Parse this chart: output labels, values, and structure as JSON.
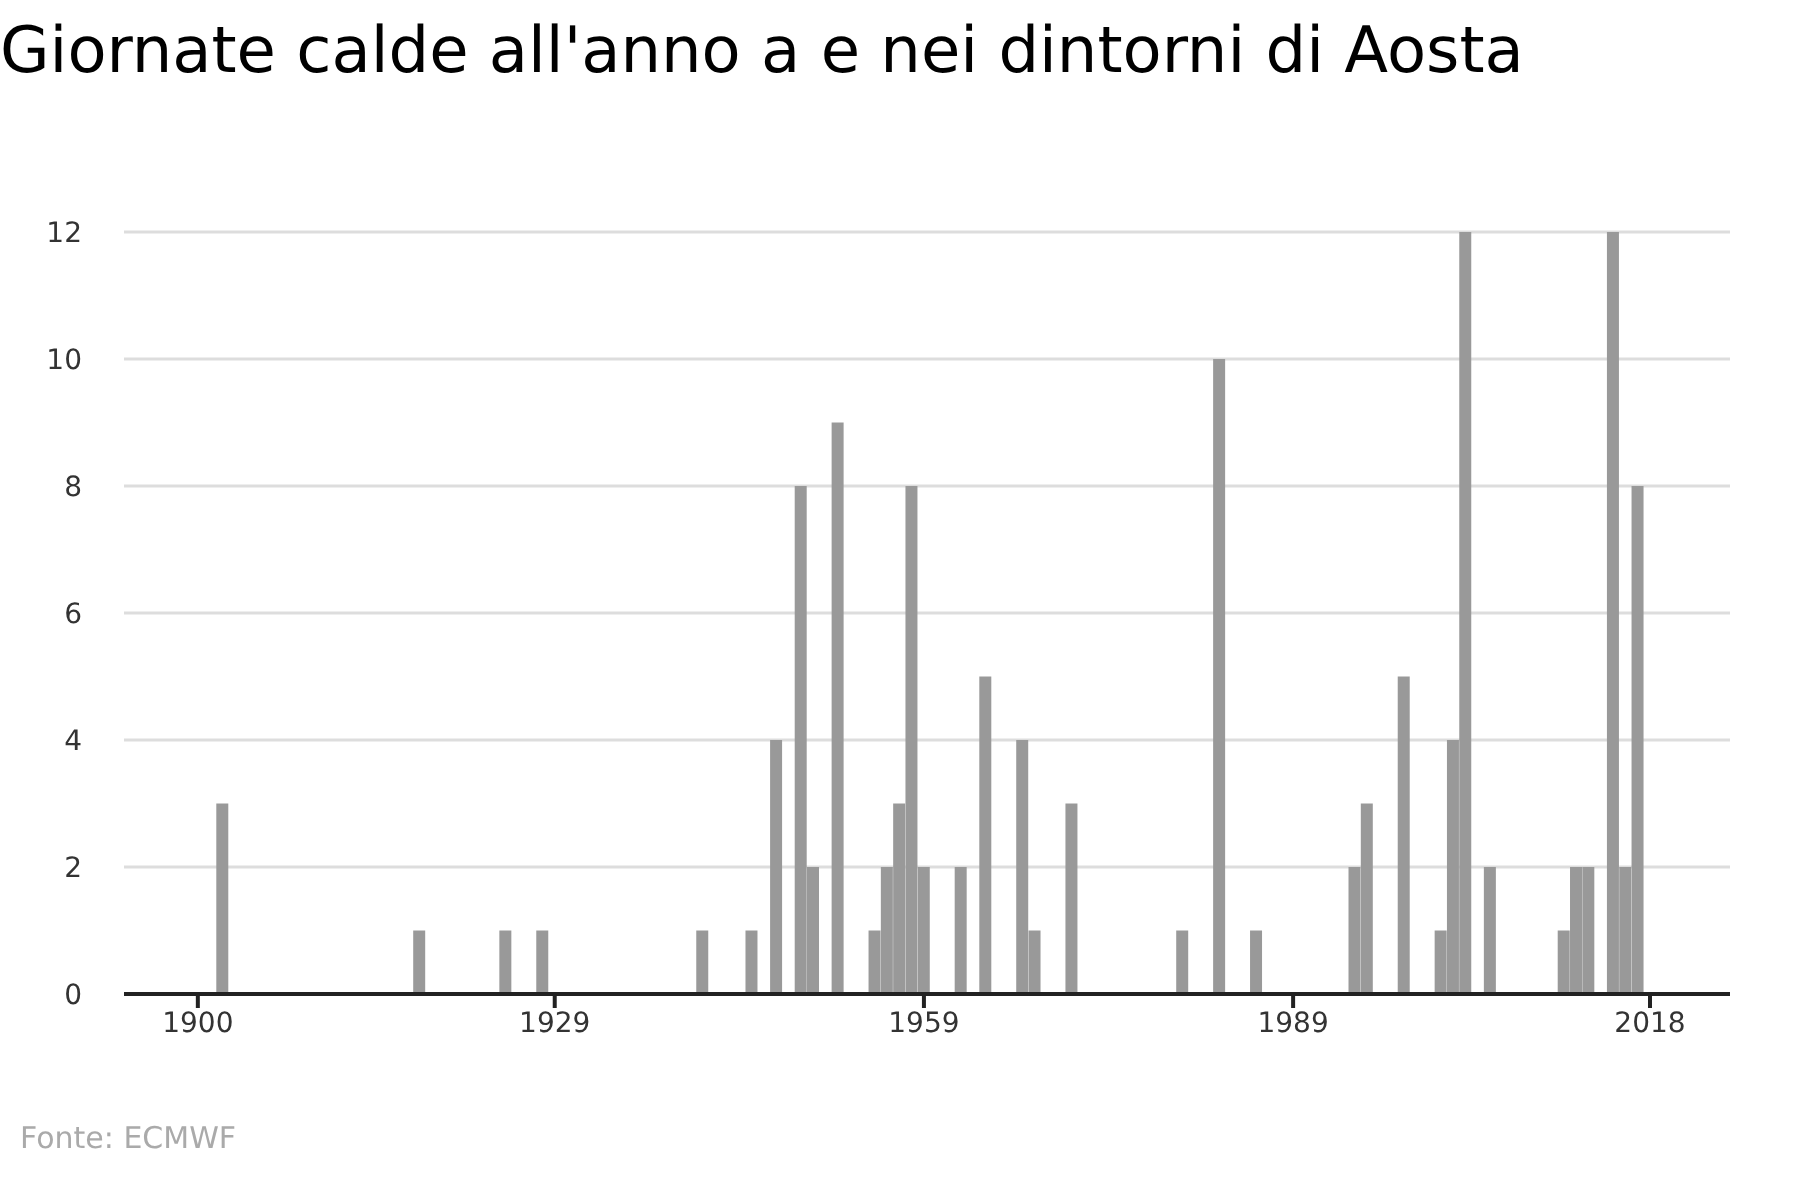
{
  "chart_data": {
    "type": "bar",
    "title": "Giornate calde all'anno a e nei dintorni di Aosta",
    "annotations": [
      "Fonte: ECMWF"
    ],
    "x": [
      1902,
      1918,
      1925,
      1928,
      1941,
      1945,
      1947,
      1949,
      1950,
      1952,
      1955,
      1956,
      1957,
      1958,
      1959,
      1962,
      1964,
      1967,
      1968,
      1971,
      1980,
      1983,
      1986,
      1994,
      1995,
      1998,
      2001,
      2002,
      2003,
      2005,
      2011,
      2012,
      2013,
      2015,
      2016,
      2017
    ],
    "values": [
      3,
      1,
      1,
      1,
      1,
      1,
      4,
      8,
      2,
      9,
      1,
      2,
      3,
      8,
      2,
      2,
      5,
      4,
      1,
      3,
      1,
      10,
      1,
      2,
      3,
      5,
      1,
      4,
      12,
      2,
      1,
      2,
      2,
      12,
      2,
      8
    ],
    "color": "#999999",
    "xlim": [
      1894,
      2024.5
    ],
    "xticks": [
      1900,
      1929,
      1959,
      1989,
      2018
    ],
    "ylim": [
      0,
      12
    ],
    "yticks": [
      0,
      2,
      4,
      6,
      8,
      10,
      12
    ],
    "grid": "y"
  }
}
